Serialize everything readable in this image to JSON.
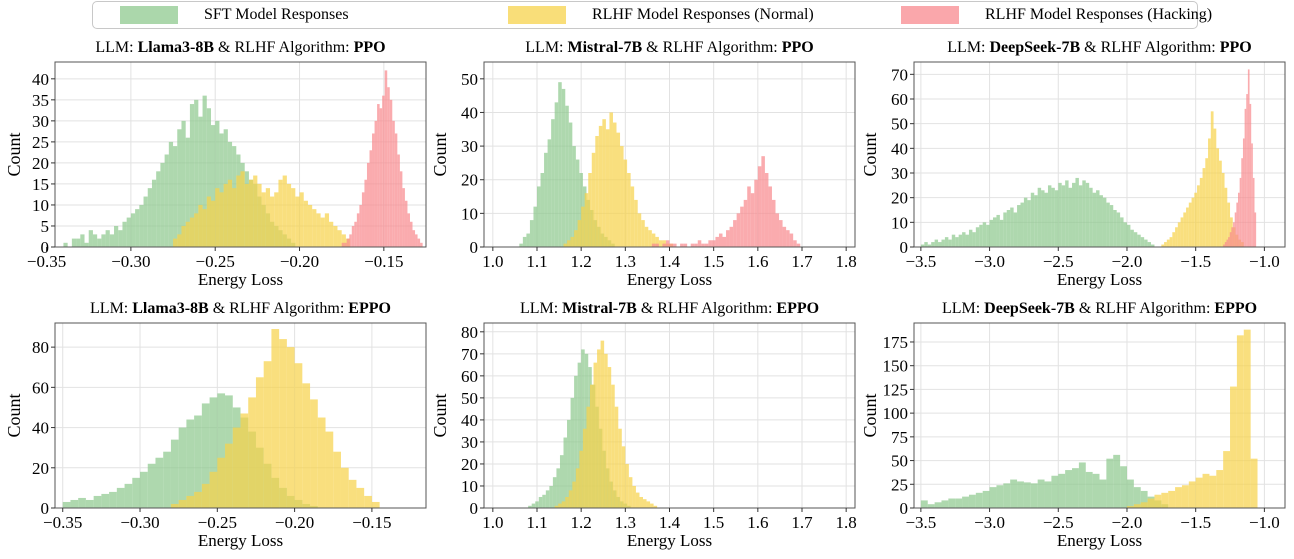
{
  "legend": {
    "items": [
      {
        "label": "SFT Model Responses",
        "color": "#8fc98f"
      },
      {
        "label": "RLHF Model Responses (Normal)",
        "color": "#f7d34c"
      },
      {
        "label": "RLHF Model Responses (Hacking)",
        "color": "#f88a8f"
      }
    ]
  },
  "chart_data": [
    {
      "type": "bar",
      "panel": "ppo-llama3",
      "title": {
        "prefix": "LLM: ",
        "model": "Llama3-8B",
        "middle": " & RLHF Algorithm: ",
        "algo": "PPO"
      },
      "xlabel": "Energy Loss",
      "ylabel": "Count",
      "xlim": [
        -0.345,
        -0.125
      ],
      "ylim": [
        0,
        44
      ],
      "xticks": [
        -0.35,
        -0.3,
        -0.25,
        -0.2,
        -0.15
      ],
      "xtick_labels": [
        "−0.35",
        "−0.30",
        "−0.25",
        "−0.20",
        "−0.15"
      ],
      "yticks": [
        0,
        5,
        10,
        15,
        20,
        25,
        30,
        35,
        40
      ],
      "series": [
        {
          "name": "SFT Model Responses",
          "color": "#8fc98f",
          "bins": {
            "start": -0.34,
            "width": 0.0025
          },
          "values": [
            1,
            0,
            2,
            2,
            3,
            1,
            4,
            3,
            2,
            3,
            4,
            3,
            5,
            4,
            6,
            7,
            8,
            9,
            10,
            12,
            14,
            16,
            18,
            20,
            22,
            25,
            24,
            28,
            30,
            26,
            34,
            35,
            31,
            36,
            33,
            29,
            30,
            27,
            28,
            25,
            24,
            22,
            20,
            18,
            16,
            15,
            12,
            10,
            8,
            6,
            5,
            4,
            3,
            2,
            1
          ]
        },
        {
          "name": "RLHF Model Responses (Normal)",
          "color": "#f7d34c",
          "bins": {
            "start": -0.275,
            "width": 0.0025
          },
          "values": [
            2,
            3,
            5,
            6,
            7,
            8,
            10,
            9,
            12,
            11,
            14,
            13,
            15,
            16,
            14,
            17,
            18,
            15,
            16,
            17,
            15,
            13,
            14,
            12,
            13,
            16,
            17,
            15,
            14,
            12,
            13,
            11,
            10,
            9,
            8,
            7,
            8,
            6,
            5,
            4,
            3,
            2
          ]
        },
        {
          "name": "RLHF Model Responses (Hacking)",
          "color": "#f88a8f",
          "bins": {
            "start": -0.175,
            "width": 0.0015
          },
          "values": [
            1,
            1,
            2,
            3,
            5,
            6,
            8,
            10,
            13,
            16,
            20,
            23,
            27,
            30,
            34,
            33,
            36,
            42,
            38,
            35,
            30,
            27,
            22,
            18,
            14,
            11,
            8,
            6,
            4,
            3,
            2,
            1
          ]
        }
      ]
    },
    {
      "type": "bar",
      "panel": "ppo-mistral",
      "title": {
        "prefix": "LLM: ",
        "model": "Mistral-7B",
        "middle": " & RLHF Algorithm: ",
        "algo": "PPO"
      },
      "xlabel": "Energy Loss",
      "ylabel": "Count",
      "xlim": [
        0.98,
        1.82
      ],
      "ylim": [
        0,
        55
      ],
      "xticks": [
        1.0,
        1.1,
        1.2,
        1.3,
        1.4,
        1.5,
        1.6,
        1.7,
        1.8
      ],
      "xtick_labels": [
        "1.0",
        "1.1",
        "1.2",
        "1.3",
        "1.4",
        "1.5",
        "1.6",
        "1.7",
        "1.8"
      ],
      "yticks": [
        0,
        10,
        20,
        30,
        40,
        50
      ],
      "series": [
        {
          "name": "SFT Model Responses",
          "color": "#8fc98f",
          "bins": {
            "start": 1.06,
            "width": 0.008
          },
          "values": [
            1,
            3,
            4,
            8,
            12,
            18,
            22,
            28,
            32,
            38,
            43,
            49,
            47,
            42,
            37,
            30,
            26,
            22,
            18,
            14,
            11,
            8,
            6,
            4,
            3,
            2,
            1
          ]
        },
        {
          "name": "RLHF Model Responses (Normal)",
          "color": "#f7d34c",
          "bins": {
            "start": 1.16,
            "width": 0.008
          },
          "values": [
            1,
            2,
            3,
            5,
            8,
            12,
            16,
            22,
            28,
            33,
            36,
            38,
            35,
            40,
            37,
            34,
            30,
            26,
            22,
            18,
            14,
            10,
            8,
            6,
            5,
            4,
            3,
            2,
            2,
            1,
            1
          ]
        },
        {
          "name": "RLHF Model Responses (Hacking)",
          "color": "#f88a8f",
          "bins": {
            "start": 1.36,
            "width": 0.008
          },
          "values": [
            1,
            1,
            0,
            1,
            2,
            1,
            1,
            0,
            1,
            1,
            0,
            1,
            1,
            2,
            1,
            1,
            2,
            2,
            3,
            4,
            3,
            5,
            6,
            8,
            10,
            12,
            14,
            18,
            16,
            20,
            24,
            27,
            22,
            18,
            14,
            10,
            8,
            6,
            5,
            4,
            2,
            1
          ]
        }
      ]
    },
    {
      "type": "bar",
      "panel": "ppo-deepseek",
      "title": {
        "prefix": "LLM: ",
        "model": "DeepSeek-7B",
        "middle": " & RLHF Algorithm: ",
        "algo": "PPO"
      },
      "xlabel": "Energy Loss",
      "ylabel": "Count",
      "xlim": [
        -3.55,
        -0.85
      ],
      "ylim": [
        0,
        75
      ],
      "xticks": [
        -3.5,
        -3.0,
        -2.5,
        -2.0,
        -1.5,
        -1.0
      ],
      "xtick_labels": [
        "−3.5",
        "−3.0",
        "−2.5",
        "−2.0",
        "−1.5",
        "−1.0"
      ],
      "yticks": [
        0,
        10,
        20,
        30,
        40,
        50,
        60,
        70
      ],
      "series": [
        {
          "name": "SFT Model Responses",
          "color": "#8fc98f",
          "bins": {
            "start": -3.5,
            "width": 0.025
          },
          "values": [
            1,
            2,
            1,
            2,
            3,
            2,
            3,
            4,
            3,
            5,
            4,
            5,
            6,
            5,
            7,
            6,
            8,
            9,
            10,
            9,
            11,
            12,
            13,
            11,
            14,
            15,
            16,
            14,
            17,
            18,
            20,
            19,
            22,
            21,
            24,
            23,
            22,
            25,
            24,
            23,
            26,
            25,
            27,
            24,
            26,
            28,
            25,
            27,
            26,
            24,
            22,
            23,
            21,
            20,
            18,
            17,
            15,
            14,
            12,
            10,
            9,
            7,
            6,
            5,
            4,
            3,
            2,
            1
          ]
        },
        {
          "name": "RLHF Model Responses (Normal)",
          "color": "#f7d34c",
          "bins": {
            "start": -1.75,
            "width": 0.02
          },
          "values": [
            1,
            2,
            3,
            4,
            6,
            8,
            10,
            12,
            14,
            16,
            18,
            20,
            22,
            25,
            28,
            32,
            36,
            44,
            55,
            48,
            40,
            35,
            30,
            24,
            18,
            12,
            8,
            5,
            3,
            2
          ]
        },
        {
          "name": "RLHF Model Responses (Hacking)",
          "color": "#f88a8f",
          "bins": {
            "start": -1.3,
            "width": 0.012
          },
          "values": [
            1,
            2,
            3,
            4,
            6,
            8,
            10,
            14,
            18,
            22,
            28,
            36,
            44,
            56,
            62,
            72,
            58,
            42,
            28,
            14
          ]
        }
      ]
    },
    {
      "type": "bar",
      "panel": "eppo-llama3",
      "title": {
        "prefix": "LLM: ",
        "model": "Llama3-8B",
        "middle": " & RLHF Algorithm: ",
        "algo": "EPPO"
      },
      "xlabel": "Energy Loss",
      "ylabel": "Count",
      "xlim": [
        -0.355,
        -0.115
      ],
      "ylim": [
        0,
        92
      ],
      "xticks": [
        -0.35,
        -0.3,
        -0.25,
        -0.2,
        -0.15
      ],
      "xtick_labels": [
        "−0.35",
        "−0.30",
        "−0.25",
        "−0.20",
        "−0.15"
      ],
      "yticks": [
        0,
        20,
        40,
        60,
        80
      ],
      "series": [
        {
          "name": "SFT Model Responses",
          "color": "#8fc98f",
          "bins": {
            "start": -0.35,
            "width": 0.005
          },
          "values": [
            3,
            4,
            5,
            4,
            6,
            7,
            8,
            10,
            12,
            15,
            18,
            22,
            25,
            28,
            34,
            40,
            44,
            46,
            52,
            55,
            57,
            56,
            50,
            45,
            38,
            30,
            22,
            15,
            10,
            6,
            4,
            2,
            1
          ]
        },
        {
          "name": "RLHF Model Responses (Normal)",
          "color": "#f7d34c",
          "bins": {
            "start": -0.28,
            "width": 0.005
          },
          "values": [
            2,
            4,
            6,
            8,
            12,
            18,
            25,
            32,
            40,
            47,
            55,
            65,
            73,
            89,
            84,
            80,
            72,
            62,
            54,
            45,
            38,
            28,
            20,
            14,
            10,
            6,
            3
          ]
        }
      ]
    },
    {
      "type": "bar",
      "panel": "eppo-mistral",
      "title": {
        "prefix": "LLM: ",
        "model": "Mistral-7B",
        "middle": " & RLHF Algorithm: ",
        "algo": "EPPO"
      },
      "xlabel": "Energy Loss",
      "ylabel": "Count",
      "xlim": [
        0.98,
        1.82
      ],
      "ylim": [
        0,
        84
      ],
      "xticks": [
        1.0,
        1.1,
        1.2,
        1.3,
        1.4,
        1.5,
        1.6,
        1.7,
        1.8
      ],
      "xtick_labels": [
        "1.0",
        "1.1",
        "1.2",
        "1.3",
        "1.4",
        "1.5",
        "1.6",
        "1.7",
        "1.8"
      ],
      "yticks": [
        0,
        10,
        20,
        30,
        40,
        50,
        60,
        70,
        80
      ],
      "series": [
        {
          "name": "SFT Model Responses",
          "color": "#8fc98f",
          "bins": {
            "start": 1.08,
            "width": 0.008
          },
          "values": [
            1,
            2,
            3,
            5,
            6,
            8,
            10,
            14,
            18,
            24,
            32,
            40,
            50,
            60,
            66,
            72,
            70,
            64,
            56,
            46,
            36,
            26,
            18,
            12,
            8,
            5,
            3,
            2,
            1
          ]
        },
        {
          "name": "RLHF Model Responses (Normal)",
          "color": "#f7d34c",
          "bins": {
            "start": 1.14,
            "width": 0.008
          },
          "values": [
            1,
            2,
            3,
            5,
            8,
            12,
            18,
            26,
            36,
            46,
            56,
            66,
            72,
            76,
            70,
            64,
            56,
            46,
            36,
            28,
            20,
            14,
            10,
            7,
            5,
            4,
            3,
            2,
            1
          ]
        }
      ]
    },
    {
      "type": "bar",
      "panel": "eppo-deepseek",
      "title": {
        "prefix": "LLM: ",
        "model": "DeepSeek-7B",
        "middle": " & RLHF Algorithm: ",
        "algo": "EPPO"
      },
      "xlabel": "Energy Loss",
      "ylabel": "Count",
      "xlim": [
        -3.55,
        -0.85
      ],
      "ylim": [
        0,
        195
      ],
      "xticks": [
        -3.5,
        -3.0,
        -2.5,
        -2.0,
        -1.5,
        -1.0
      ],
      "xtick_labels": [
        "−3.5",
        "−3.0",
        "−2.5",
        "−2.0",
        "−1.5",
        "−1.0"
      ],
      "yticks": [
        0,
        25,
        50,
        75,
        100,
        125,
        150,
        175
      ],
      "series": [
        {
          "name": "SFT Model Responses",
          "color": "#8fc98f",
          "bins": {
            "start": -3.5,
            "width": 0.05
          },
          "values": [
            8,
            4,
            6,
            8,
            10,
            10,
            12,
            14,
            16,
            18,
            22,
            24,
            26,
            30,
            28,
            27,
            26,
            30,
            28,
            34,
            36,
            40,
            42,
            48,
            38,
            36,
            30,
            52,
            56,
            44,
            30,
            22,
            18,
            12,
            8,
            4
          ]
        },
        {
          "name": "RLHF Model Responses (Normal)",
          "color": "#f7d34c",
          "bins": {
            "start": -2.0,
            "width": 0.05
          },
          "values": [
            2,
            4,
            6,
            10,
            14,
            16,
            18,
            22,
            24,
            28,
            32,
            36,
            34,
            40,
            60,
            128,
            182,
            188,
            52
          ]
        }
      ]
    }
  ]
}
